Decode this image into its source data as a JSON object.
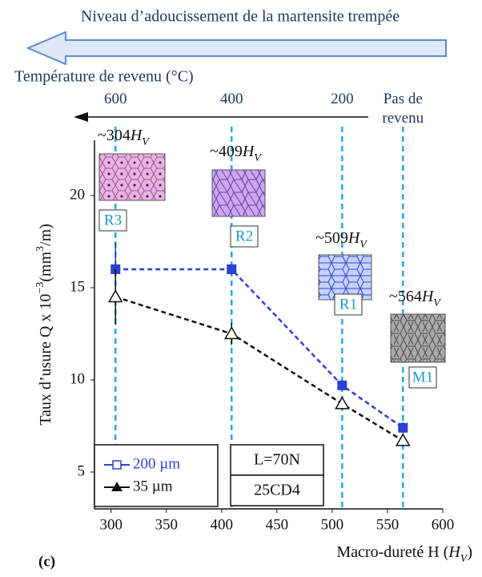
{
  "chart_data": {
    "type": "line",
    "title": "Niveau d’adoucissement de la martensite trempée",
    "x2label": "Température de revenu (°C)",
    "x2ticks": [
      {
        "value": 304,
        "label": "600"
      },
      {
        "value": 409,
        "label": "400"
      },
      {
        "value": 509,
        "label": "200"
      },
      {
        "value": 564,
        "label": "Pas de revenu"
      }
    ],
    "ylabel": [
      {
        "text": "Taux d’usure Q x 10"
      },
      {
        "text": "−3",
        "sup": true
      },
      {
        "text": "(mm"
      },
      {
        "text": "3",
        "sup": true
      },
      {
        "text": "/m)"
      }
    ],
    "xlabel_before": "Macro-dureté H (",
    "xlabel_after": ")",
    "hardness_unit": {
      "symbol": "H",
      "sub": "V"
    },
    "x": [
      304,
      409,
      509,
      564
    ],
    "xlim": [
      285,
      600
    ],
    "xticks": [
      300,
      350,
      400,
      450,
      500,
      550,
      600
    ],
    "ylim": [
      3,
      23
    ],
    "yticks": [
      5,
      10,
      15,
      20
    ],
    "grid": false,
    "legend": "lower left",
    "series": [
      {
        "name": "200 µm",
        "color": "#2b3fd1",
        "marker": "square",
        "values": [
          16,
          16,
          9.7,
          7.4
        ],
        "errors": [
          1.5,
          0.3,
          0.3,
          0.3
        ]
      },
      {
        "name": "35 µm",
        "color": "#111111",
        "marker": "triangle",
        "values": [
          14.5,
          12.5,
          8.7,
          6.7
        ],
        "errors": [
          1.5,
          0.6,
          0.3,
          0.3
        ]
      }
    ],
    "annotations": [
      {
        "x": 304,
        "hardness": "~304",
        "sample": "R3"
      },
      {
        "x": 409,
        "hardness": "~409",
        "sample": "R2"
      },
      {
        "x": 509,
        "hardness": "~509",
        "sample": "R1"
      },
      {
        "x": 564,
        "hardness": "~564",
        "sample": "M1"
      }
    ],
    "conditions": [
      "L=70N",
      "25CD4"
    ],
    "panel_label": "(c)"
  }
}
